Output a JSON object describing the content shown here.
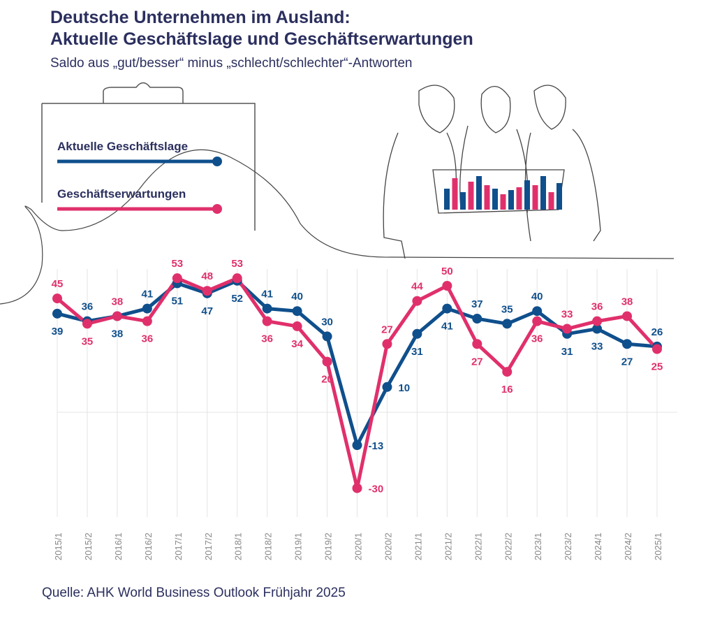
{
  "title_line1": "Deutsche Unternehmen im Ausland:",
  "title_line2": "Aktuelle Geschäftslage und Geschäftserwartungen",
  "subtitle": "Saldo aus „gut/besser“ minus „schlecht/schlechter“-Antworten",
  "source": "Quelle: AHK World Business Outlook Frühjahr 2025",
  "colors": {
    "lage": "#0f4f8c",
    "erwartungen": "#e0306b",
    "title": "#2b2f5e"
  },
  "chart_data": {
    "type": "line",
    "categories": [
      "2015/1",
      "2015/2",
      "2016/1",
      "2016/2",
      "2017/1",
      "2017/2",
      "2018/1",
      "2018/2",
      "2019/1",
      "2019/2",
      "2020/1",
      "2020/2",
      "2021/1",
      "2021/2",
      "2022/1",
      "2022/2",
      "2023/1",
      "2023/2",
      "2024/1",
      "2024/2",
      "2025/1"
    ],
    "series": [
      {
        "name": "Aktuelle Geschäftslage",
        "color": "#0f4f8c",
        "values": [
          39,
          36,
          38,
          41,
          51,
          47,
          52,
          41,
          40,
          30,
          -13,
          10,
          31,
          41,
          37,
          35,
          40,
          31,
          33,
          27,
          26
        ]
      },
      {
        "name": "Geschäftserwartungen",
        "color": "#e0306b",
        "values": [
          45,
          35,
          38,
          36,
          53,
          48,
          53,
          36,
          34,
          20,
          -30,
          27,
          44,
          50,
          27,
          16,
          36,
          33,
          36,
          38,
          25
        ]
      }
    ],
    "legend": "top-left",
    "grid": "vertical lines and zero line"
  }
}
